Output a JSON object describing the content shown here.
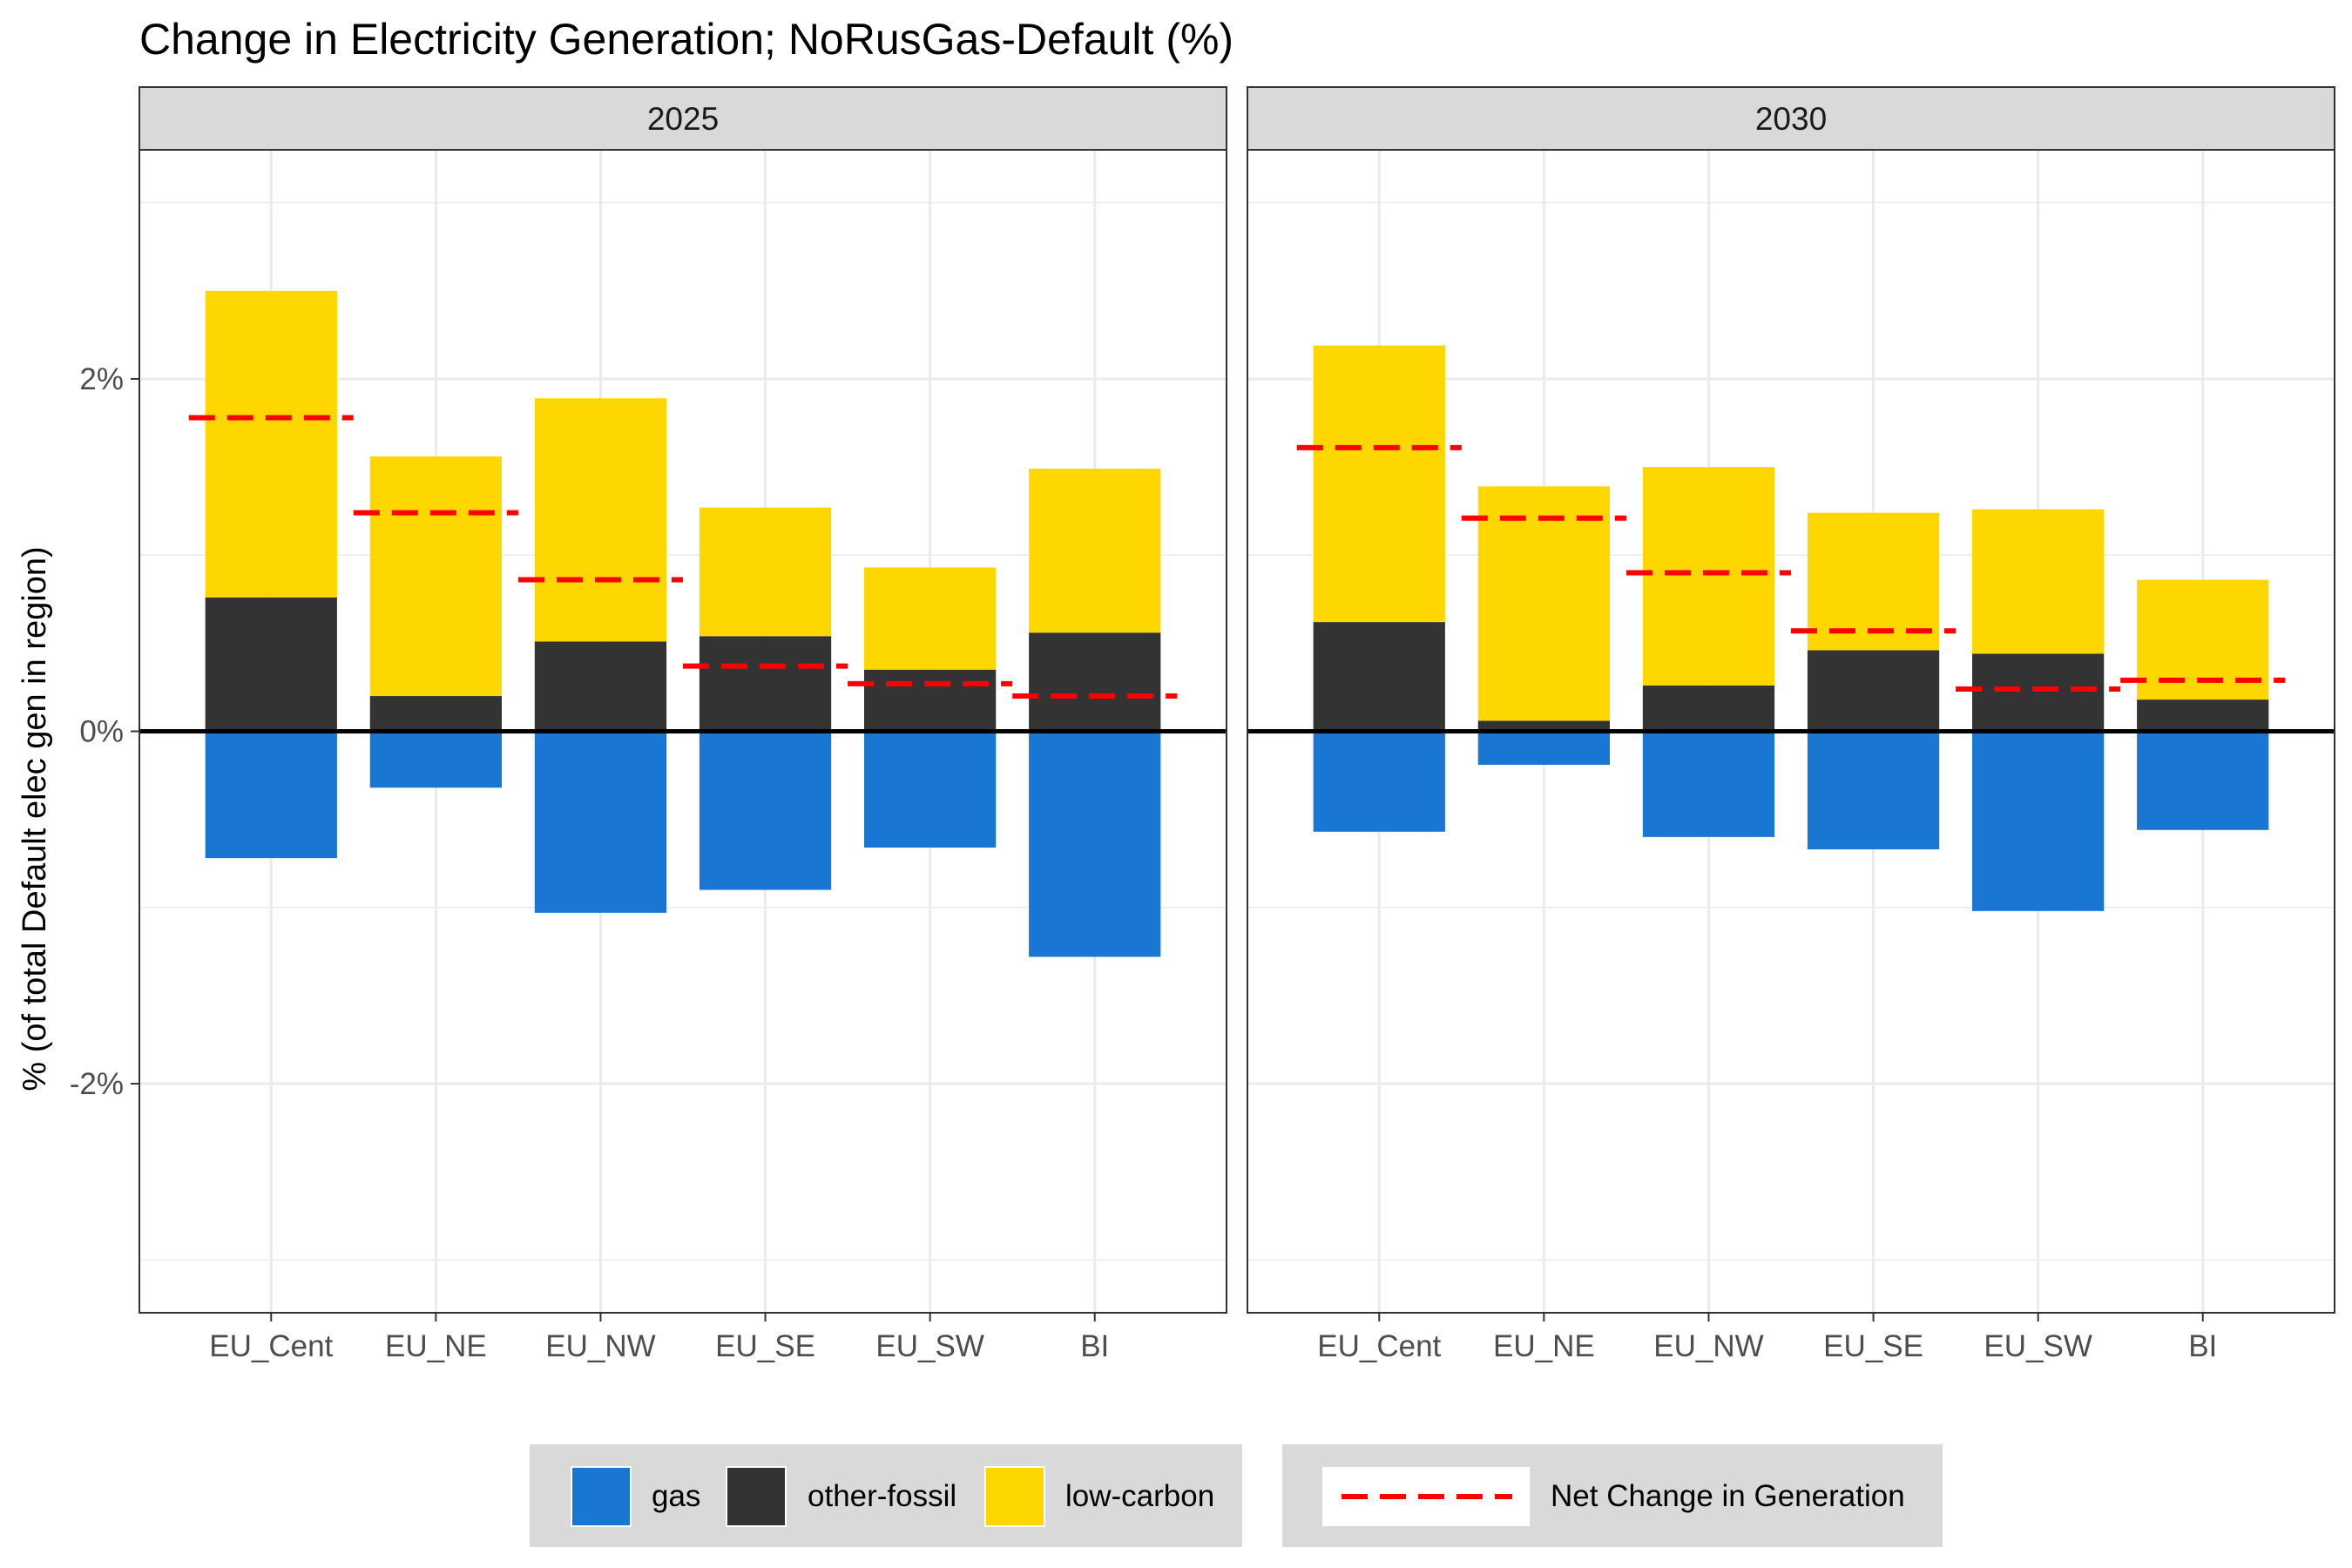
{
  "chart_data": {
    "type": "bar",
    "stacked": true,
    "title": "Change in Electricity Generation; NoRusGas-Default (%)",
    "ylabel": "% (of total Default elec gen in region)",
    "xlabel": "",
    "ylim": [
      -3.3,
      3.3
    ],
    "y_ticks": [
      -2,
      0,
      2
    ],
    "y_tick_labels": [
      "-2%",
      "0%",
      "2%"
    ],
    "y_minor_ticks": [
      -3,
      -1,
      1,
      3
    ],
    "grid": true,
    "legend_position": "bottom",
    "categories": [
      "EU_Cent",
      "EU_NE",
      "EU_NW",
      "EU_SE",
      "EU_SW",
      "BI"
    ],
    "series_meta": [
      {
        "key": "gas",
        "name": "gas",
        "color": "#1976D2"
      },
      {
        "key": "other_fossil",
        "name": "other-fossil",
        "color": "#333333"
      },
      {
        "key": "low_carbon",
        "name": "low-carbon",
        "color": "#FFD700"
      }
    ],
    "net_line": {
      "name": "Net Change in Generation",
      "color": "#FF0000",
      "style": "dashed"
    },
    "panels": [
      {
        "label": "2025",
        "gas": [
          -0.72,
          -0.32,
          -1.03,
          -0.9,
          -0.66,
          -1.28
        ],
        "other_fossil": [
          0.76,
          0.2,
          0.51,
          0.54,
          0.35,
          0.56
        ],
        "low_carbon": [
          1.74,
          1.36,
          1.38,
          0.73,
          0.58,
          0.93
        ],
        "net": [
          1.78,
          1.24,
          0.86,
          0.37,
          0.27,
          0.2
        ]
      },
      {
        "label": "2030",
        "gas": [
          -0.57,
          -0.19,
          -0.6,
          -0.67,
          -1.02,
          -0.56
        ],
        "other_fossil": [
          0.62,
          0.06,
          0.26,
          0.46,
          0.44,
          0.18
        ],
        "low_carbon": [
          1.57,
          1.33,
          1.24,
          0.78,
          0.82,
          0.68
        ],
        "net": [
          1.61,
          1.21,
          0.9,
          0.57,
          0.24,
          0.29
        ]
      }
    ]
  }
}
